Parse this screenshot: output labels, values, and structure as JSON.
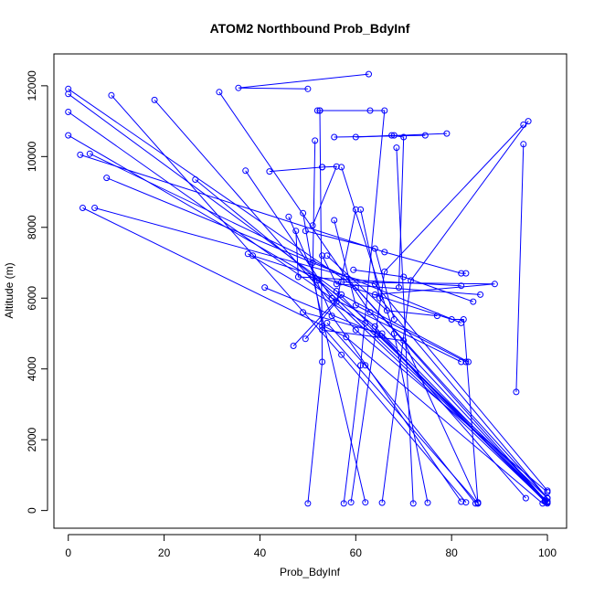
{
  "chart_data": {
    "type": "scatter",
    "title": "ATOM2 Northbound Prob_BdyInf",
    "xlabel": "Prob_BdyInf",
    "ylabel": "Altitude (m)",
    "xlim": [
      -3,
      104
    ],
    "ylim": [
      -500,
      12900
    ],
    "xticks": [
      0,
      20,
      40,
      60,
      80,
      100
    ],
    "yticks": [
      0,
      2000,
      4000,
      6000,
      8000,
      10000,
      12000
    ],
    "grid": false,
    "series": [
      {
        "color": "#0000ff",
        "style": "lines+points",
        "segments": [
          [
            [
              62.7,
              12330
            ],
            [
              35.5,
              11940
            ],
            [
              50.0,
              11910
            ]
          ],
          [
            [
              31.5,
              11820
            ],
            [
              63.0,
              5600
            ],
            [
              100.0,
              230
            ]
          ],
          [
            [
              0.0,
              11910
            ],
            [
              60.0,
              6300
            ],
            [
              100.0,
              350
            ]
          ],
          [
            [
              0.0,
              11770
            ],
            [
              56.0,
              6200
            ],
            [
              99.5,
              270
            ]
          ],
          [
            [
              0.0,
              11260
            ],
            [
              55.0,
              6000
            ],
            [
              100.0,
              200
            ]
          ],
          [
            [
              0.0,
              10600
            ],
            [
              52.0,
              6500
            ],
            [
              100.0,
              260
            ]
          ],
          [
            [
              9.0,
              11730
            ],
            [
              57.0,
              4400
            ],
            [
              83.0,
              230
            ]
          ],
          [
            [
              18.0,
              11600
            ],
            [
              60.0,
              5100
            ],
            [
              100.0,
              520
            ]
          ],
          [
            [
              52.0,
              11300
            ],
            [
              52.5,
              11300
            ],
            [
              63.0,
              11300
            ],
            [
              66.0,
              11300
            ],
            [
              61.0,
              4100
            ],
            [
              57.5,
              200
            ]
          ],
          [
            [
              52.5,
              11300
            ],
            [
              53.0,
              4200
            ],
            [
              50.0,
              200
            ]
          ],
          [
            [
              79.0,
              10650
            ],
            [
              60.0,
              10550
            ],
            [
              68.0,
              10600
            ]
          ],
          [
            [
              55.5,
              10550
            ],
            [
              74.5,
              10600
            ]
          ],
          [
            [
              67.5,
              10600
            ],
            [
              70.0,
              10550
            ],
            [
              69.0,
              6300
            ]
          ],
          [
            [
              51.5,
              10450
            ],
            [
              51.0,
              6600
            ],
            [
              62.0,
              230
            ]
          ],
          [
            [
              95.0,
              10900
            ],
            [
              66.0,
              6750
            ],
            [
              59.0,
              230
            ]
          ],
          [
            [
              96.0,
              11000
            ],
            [
              71.5,
              6500
            ],
            [
              65.5,
              220
            ]
          ],
          [
            [
              95.0,
              10350
            ],
            [
              93.5,
              3350
            ]
          ],
          [
            [
              68.5,
              10250
            ],
            [
              72.0,
              200
            ]
          ],
          [
            [
              4.5,
              10080
            ],
            [
              58.0,
              6600
            ],
            [
              99.5,
              300
            ]
          ],
          [
            [
              2.5,
              10050
            ],
            [
              66.0,
              7300
            ],
            [
              82.0,
              6700
            ],
            [
              83.0,
              6700
            ]
          ],
          [
            [
              53.0,
              9700
            ],
            [
              56.0,
              9720
            ],
            [
              51.0,
              8050
            ]
          ],
          [
            [
              57.0,
              9700
            ],
            [
              68.0,
              5000
            ],
            [
              75.0,
              220
            ]
          ],
          [
            [
              37.0,
              9600
            ],
            [
              55.0,
              6000
            ],
            [
              82.0,
              4200
            ]
          ],
          [
            [
              42.0,
              9580
            ],
            [
              53.0,
              9700
            ]
          ],
          [
            [
              8.0,
              9400
            ],
            [
              51.0,
              7000
            ],
            [
              82.0,
              5300
            ]
          ],
          [
            [
              26.5,
              9350
            ],
            [
              64.0,
              5200
            ],
            [
              95.5,
              350
            ]
          ],
          [
            [
              3.0,
              8550
            ],
            [
              58.0,
              4900
            ],
            [
              99.0,
              200
            ]
          ],
          [
            [
              5.5,
              8550
            ],
            [
              64.0,
              6400
            ],
            [
              100.0,
              560
            ]
          ],
          [
            [
              61.0,
              8500
            ],
            [
              65.0,
              6000
            ],
            [
              100.0,
              350
            ]
          ],
          [
            [
              60.0,
              8500
            ],
            [
              56.0,
              5900
            ],
            [
              49.5,
              4850
            ]
          ],
          [
            [
              46.0,
              8300
            ],
            [
              55.0,
              5500
            ],
            [
              82.0,
              250
            ]
          ],
          [
            [
              49.0,
              8400
            ],
            [
              53.0,
              5200
            ],
            [
              85.5,
              200
            ]
          ],
          [
            [
              55.5,
              8200
            ],
            [
              60.0,
              5800
            ],
            [
              83.0,
              4200
            ]
          ],
          [
            [
              47.5,
              7900
            ],
            [
              48.0,
              6600
            ],
            [
              82.0,
              6350
            ]
          ],
          [
            [
              49.5,
              7900
            ],
            [
              64.0,
              7400
            ],
            [
              68.0,
              5400
            ]
          ],
          [
            [
              37.5,
              7250
            ],
            [
              62.0,
              5300
            ],
            [
              100.0,
              350
            ]
          ],
          [
            [
              38.5,
              7200
            ],
            [
              80.0,
              5400
            ],
            [
              82.5,
              5400
            ],
            [
              85.5,
              200
            ]
          ],
          [
            [
              41.0,
              6300
            ],
            [
              64.5,
              5000
            ],
            [
              99.5,
              250
            ]
          ],
          [
            [
              53.0,
              7200
            ],
            [
              56.0,
              6400
            ],
            [
              86.0,
              6100
            ]
          ],
          [
            [
              54.0,
              7200
            ],
            [
              66.5,
              5650
            ],
            [
              77.0,
              5500
            ]
          ],
          [
            [
              59.5,
              6800
            ],
            [
              70.0,
              6600
            ],
            [
              84.5,
              5900
            ]
          ],
          [
            [
              57.0,
              6450
            ],
            [
              89.0,
              6400
            ],
            [
              64.0,
              6100
            ]
          ],
          [
            [
              49.0,
              5600
            ],
            [
              65.5,
              5000
            ],
            [
              100.0,
              230
            ]
          ],
          [
            [
              47.0,
              4650
            ],
            [
              57.0,
              6100
            ],
            [
              83.5,
              4200
            ]
          ],
          [
            [
              53.0,
              5100
            ],
            [
              70.0,
              4800
            ],
            [
              85.5,
              230
            ]
          ],
          [
            [
              54.0,
              5300
            ],
            [
              62.0,
              4100
            ],
            [
              85.0,
              200
            ]
          ]
        ]
      }
    ]
  }
}
